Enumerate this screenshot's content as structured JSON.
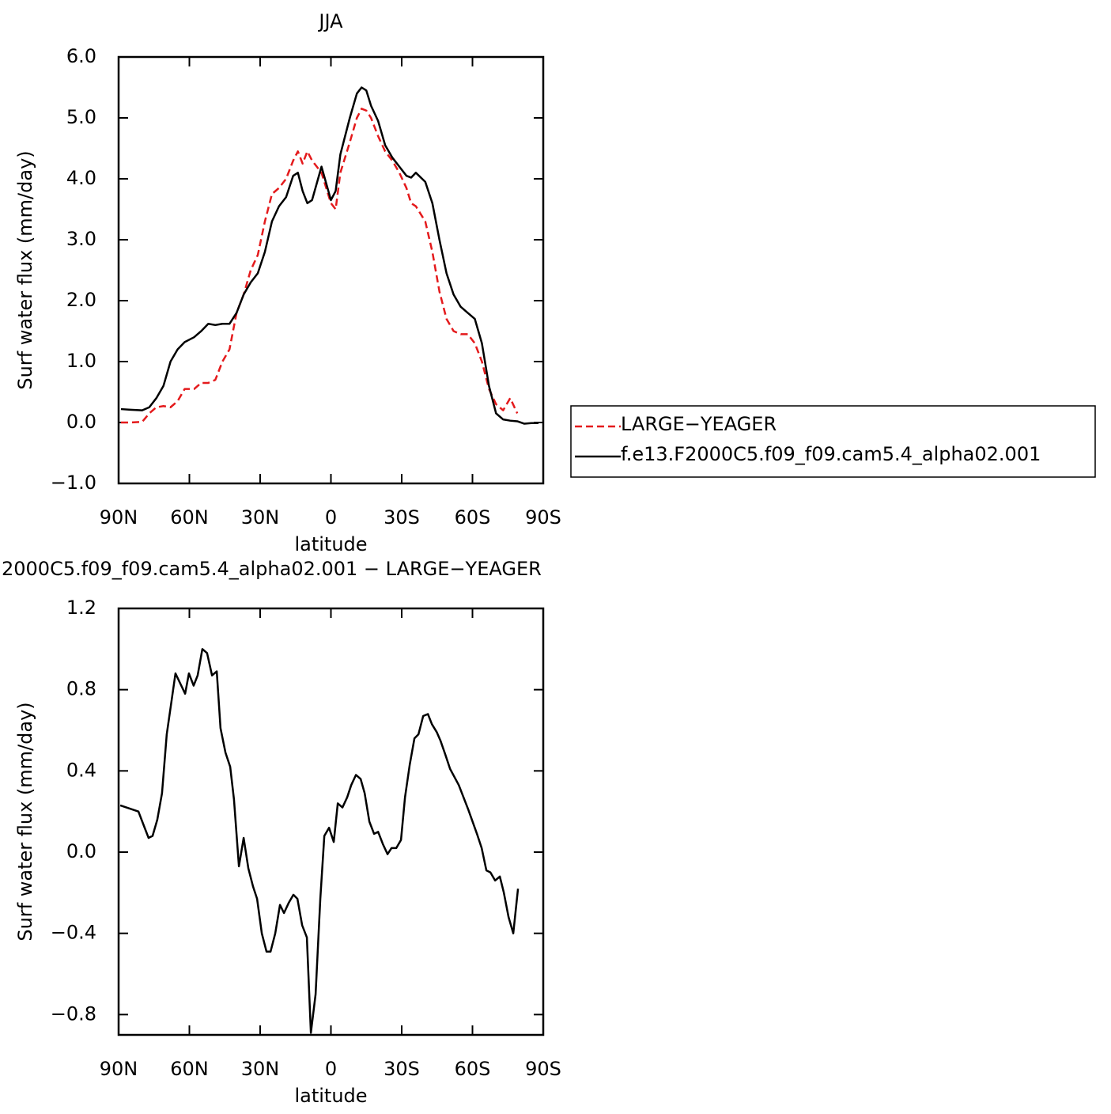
{
  "chart_data": [
    {
      "type": "line",
      "title": "JJA",
      "xlabel": "latitude",
      "ylabel": "Surf water flux (mm/day)",
      "x": [
        89,
        85,
        80,
        77,
        74,
        71,
        68,
        65,
        62,
        58,
        55,
        52,
        49,
        46,
        43,
        40,
        37,
        34,
        31,
        28,
        25,
        22,
        19,
        16,
        14,
        12,
        10,
        8,
        4,
        0,
        -2,
        -4,
        -8,
        -11,
        -13,
        -15,
        -17,
        -20,
        -23,
        -26,
        -29,
        -32,
        -34,
        -36,
        -40,
        -43,
        -46,
        -49,
        -52,
        -55,
        -58,
        -61,
        -64,
        -67,
        -70,
        -73,
        -76,
        -79,
        -82,
        -85,
        -88
      ],
      "series": [
        {
          "name": "LARGE−YEAGER",
          "color": "#e41a1c",
          "line_style": "dashed",
          "values": [
            0,
            0,
            0.01,
            0.15,
            0.25,
            0.27,
            0.25,
            0.35,
            0.55,
            0.55,
            0.65,
            0.65,
            0.7,
            1.0,
            1.2,
            1.8,
            2.1,
            2.5,
            2.75,
            3.3,
            3.75,
            3.85,
            4.0,
            4.3,
            4.45,
            4.25,
            4.45,
            4.3,
            4.1,
            3.6,
            3.5,
            4.1,
            4.6,
            5.0,
            5.15,
            5.12,
            5.0,
            4.7,
            4.45,
            4.3,
            4.1,
            3.85,
            3.6,
            3.55,
            3.3,
            2.8,
            2.15,
            1.7,
            1.5,
            1.45,
            1.45,
            1.3,
            1.0,
            0.55,
            0.3,
            0.2,
            0.4,
            0.15,
            null,
            null,
            null
          ]
        },
        {
          "name": "f.e13.F2000C5.f09_f09.cam5.4_alpha02.001",
          "color": "#000000",
          "line_style": "solid",
          "values": [
            0.22,
            0.21,
            0.2,
            0.25,
            0.4,
            0.6,
            1.0,
            1.2,
            1.32,
            1.4,
            1.5,
            1.62,
            1.6,
            1.62,
            1.62,
            1.8,
            2.1,
            2.3,
            2.45,
            2.8,
            3.3,
            3.55,
            3.7,
            4.05,
            4.1,
            3.8,
            3.6,
            3.65,
            4.2,
            3.65,
            3.8,
            4.4,
            5.0,
            5.4,
            5.5,
            5.45,
            5.2,
            4.95,
            4.55,
            4.35,
            4.2,
            4.05,
            4.02,
            4.1,
            3.95,
            3.6,
            3.0,
            2.45,
            2.1,
            1.9,
            1.8,
            1.7,
            1.3,
            0.6,
            0.15,
            0.05,
            0.03,
            0.02,
            -0.02,
            -0.01,
            -0.01
          ]
        }
      ],
      "xlim": [
        90,
        -90
      ],
      "xticks": [
        {
          "value": 90,
          "label": "90N"
        },
        {
          "value": 60,
          "label": "60N"
        },
        {
          "value": 30,
          "label": "30N"
        },
        0,
        {
          "value": -30,
          "label": "30S"
        },
        {
          "value": -60,
          "label": "60S"
        },
        {
          "value": -90,
          "label": "90S"
        }
      ],
      "ylim": [
        -1,
        6
      ],
      "yticks": [
        {
          "value": -1,
          "label": "−1.0"
        },
        {
          "value": 0,
          "label": "0.0"
        },
        {
          "value": 1,
          "label": "1.0"
        },
        {
          "value": 2,
          "label": "2.0"
        },
        {
          "value": 3,
          "label": "3.0"
        },
        {
          "value": 4,
          "label": "4.0"
        },
        {
          "value": 5,
          "label": "5.0"
        },
        {
          "value": 6,
          "label": "6.0"
        }
      ],
      "legend": "outside-right"
    },
    {
      "type": "line",
      "title": "2000C5.f09_f09.cam5.4_alpha02.001 − LARGE−YEAGER",
      "xlabel": "latitude",
      "ylabel": "Surf water flux (mm/day)",
      "x": [
        89.3,
        81.6,
        79.3,
        77.3,
        75.6,
        73.6,
        71.6,
        69.6,
        67.5,
        65.9,
        61.8,
        60.2,
        58.2,
        56.5,
        54.5,
        52.5,
        50.4,
        48.4,
        46.8,
        44.7,
        42.7,
        41.1,
        39.0,
        37.0,
        35.0,
        33.0,
        31.3,
        29.3,
        27.3,
        25.6,
        23.6,
        21.6,
        19.9,
        17.9,
        15.9,
        14.2,
        12.2,
        10.2,
        8.5,
        6.5,
        4.5,
        2.8,
        0.8,
        -1.2,
        -2.9,
        -4.9,
        -6.9,
        -8.6,
        -10.6,
        -12.6,
        -14.3,
        -16.3,
        -18.3,
        -20.0,
        -22.0,
        -24.0,
        -25.7,
        -27.7,
        -29.7,
        -31.4,
        -33.4,
        -35.4,
        -37.1,
        -39.1,
        -41.1,
        -42.8,
        -44.9,
        -46.4,
        -48.5,
        -50.5,
        -54.2,
        -58.2,
        -61.9,
        -63.9,
        -65.9,
        -67.6,
        -69.6,
        -71.6,
        -73.3,
        -75.3,
        -77.3,
        -79.3
      ],
      "series": [
        {
          "color": "#000000",
          "line_style": "solid",
          "values": [
            0.23,
            0.2,
            0.13,
            0.07,
            0.08,
            0.16,
            0.29,
            0.58,
            0.75,
            0.88,
            0.78,
            0.88,
            0.82,
            0.87,
            1.0,
            0.98,
            0.87,
            0.89,
            0.61,
            0.49,
            0.42,
            0.26,
            -0.07,
            0.07,
            -0.08,
            -0.17,
            -0.23,
            -0.4,
            -0.49,
            -0.49,
            -0.4,
            -0.26,
            -0.3,
            -0.25,
            -0.21,
            -0.23,
            -0.36,
            -0.42,
            -0.89,
            -0.7,
            -0.23,
            0.08,
            0.12,
            0.05,
            0.24,
            0.22,
            0.27,
            0.33,
            0.38,
            0.36,
            0.29,
            0.15,
            0.09,
            0.1,
            0.04,
            -0.01,
            0.02,
            0.02,
            0.06,
            0.27,
            0.43,
            0.56,
            0.58,
            0.67,
            0.68,
            0.63,
            0.59,
            0.55,
            0.48,
            0.41,
            0.33,
            0.21,
            0.09,
            0.02,
            -0.09,
            -0.1,
            -0.14,
            -0.12,
            -0.2,
            -0.32,
            -0.4,
            -0.18
          ]
        }
      ],
      "xlim": [
        90,
        -90
      ],
      "xticks": [
        {
          "value": 90,
          "label": "90N"
        },
        {
          "value": 60,
          "label": "60N"
        },
        {
          "value": 30,
          "label": "30N"
        },
        0,
        {
          "value": -30,
          "label": "30S"
        },
        {
          "value": -60,
          "label": "60S"
        },
        {
          "value": -90,
          "label": "90S"
        }
      ],
      "ylim": [
        -0.9,
        1.2
      ],
      "yticks": [
        {
          "value": -0.8,
          "label": "−0.8"
        },
        {
          "value": -0.4,
          "label": "−0.4"
        },
        {
          "value": 0,
          "label": "0.0"
        },
        {
          "value": 0.4,
          "label": "0.4"
        },
        {
          "value": 0.8,
          "label": "0.8"
        },
        {
          "value": 1.2,
          "label": "1.2"
        }
      ]
    }
  ]
}
